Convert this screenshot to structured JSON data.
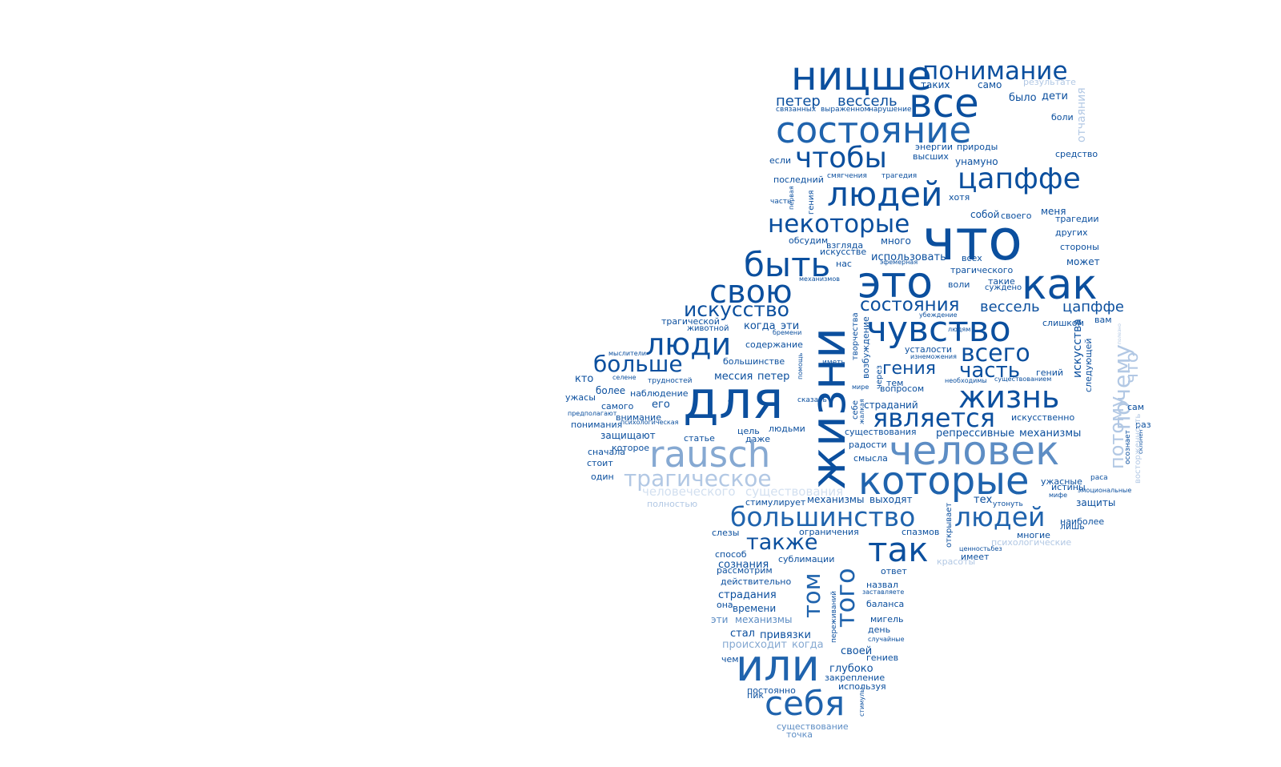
{
  "palette": {
    "c1": "#0b4f9e",
    "c2": "#1f63ad",
    "c3": "#3c78ba",
    "c4": "#5d8dc4",
    "c5": "#86a9d2",
    "c6": "#b2c8e4",
    "c7": "#d3e0f0"
  },
  "words": [
    {
      "text": "ницше",
      "color": "c1"
    },
    {
      "text": "понимание",
      "color": "c1"
    },
    {
      "text": "таких",
      "color": "c1"
    },
    {
      "text": "само",
      "color": "c1"
    },
    {
      "text": "результате",
      "color": "c6"
    },
    {
      "text": "петер",
      "color": "c1"
    },
    {
      "text": "вессель",
      "color": "c1"
    },
    {
      "text": "все",
      "color": "c1"
    },
    {
      "text": "связанных",
      "color": "c1"
    },
    {
      "text": "выраженном",
      "color": "c1"
    },
    {
      "text": "нарушение",
      "color": "c1"
    },
    {
      "text": "было",
      "color": "c1"
    },
    {
      "text": "дети",
      "color": "c1"
    },
    {
      "text": "отчаяния",
      "color": "c6"
    },
    {
      "text": "боли",
      "color": "c1"
    },
    {
      "text": "состояние",
      "color": "c2"
    },
    {
      "text": "энергии",
      "color": "c1"
    },
    {
      "text": "природы",
      "color": "c1"
    },
    {
      "text": "высших",
      "color": "c1"
    },
    {
      "text": "средство",
      "color": "c1"
    },
    {
      "text": "чтобы",
      "color": "c1"
    },
    {
      "text": "если",
      "color": "c1"
    },
    {
      "text": "унамуно",
      "color": "c1"
    },
    {
      "text": "последний",
      "color": "c1"
    },
    {
      "text": "смягчения",
      "color": "c1"
    },
    {
      "text": "трагедия",
      "color": "c1"
    },
    {
      "text": "цапффе",
      "color": "c1"
    },
    {
      "text": "людей",
      "color": "c1"
    },
    {
      "text": "часть",
      "color": "c1"
    },
    {
      "text": "первая",
      "color": "c1"
    },
    {
      "text": "гения",
      "color": "c1"
    },
    {
      "text": "хотя",
      "color": "c1"
    },
    {
      "text": "собой",
      "color": "c1"
    },
    {
      "text": "своего",
      "color": "c1"
    },
    {
      "text": "меня",
      "color": "c1"
    },
    {
      "text": "трагедии",
      "color": "c1"
    },
    {
      "text": "некоторые",
      "color": "c1"
    },
    {
      "text": "что",
      "color": "c1"
    },
    {
      "text": "других",
      "color": "c1"
    },
    {
      "text": "обсудим",
      "color": "c1"
    },
    {
      "text": "много",
      "color": "c1"
    },
    {
      "text": "взгляда",
      "color": "c1"
    },
    {
      "text": "искусстве",
      "color": "c1"
    },
    {
      "text": "стороны",
      "color": "c1"
    },
    {
      "text": "быть",
      "color": "c1"
    },
    {
      "text": "использовать",
      "color": "c1"
    },
    {
      "text": "всех",
      "color": "c1"
    },
    {
      "text": "может",
      "color": "c1"
    },
    {
      "text": "нас",
      "color": "c1"
    },
    {
      "text": "эфемерная",
      "color": "c1"
    },
    {
      "text": "трагического",
      "color": "c1"
    },
    {
      "text": "свою",
      "color": "c1"
    },
    {
      "text": "механизмов",
      "color": "c1"
    },
    {
      "text": "это",
      "color": "c1"
    },
    {
      "text": "как",
      "color": "c1"
    },
    {
      "text": "воли",
      "color": "c1"
    },
    {
      "text": "такие",
      "color": "c1"
    },
    {
      "text": "суждено",
      "color": "c1"
    },
    {
      "text": "жизни",
      "color": "c1"
    },
    {
      "text": "искусство",
      "color": "c1"
    },
    {
      "text": "состояния",
      "color": "c1"
    },
    {
      "text": "вессель",
      "color": "c1"
    },
    {
      "text": "цапффе",
      "color": "c1"
    },
    {
      "text": "убеждение",
      "color": "c1"
    },
    {
      "text": "вам",
      "color": "c1"
    },
    {
      "text": "трагической",
      "color": "c1"
    },
    {
      "text": "когда",
      "color": "c1"
    },
    {
      "text": "эти",
      "color": "c1"
    },
    {
      "text": "животной",
      "color": "c1"
    },
    {
      "text": "бремени",
      "color": "c1"
    },
    {
      "text": "творчества",
      "color": "c1"
    },
    {
      "text": "чувство",
      "color": "c1"
    },
    {
      "text": "слишком",
      "color": "c1"
    },
    {
      "text": "полезно",
      "color": "c6"
    },
    {
      "text": "люди",
      "color": "c1"
    },
    {
      "text": "людям",
      "color": "c1"
    },
    {
      "text": "содержание",
      "color": "c1"
    },
    {
      "text": "возбуждение",
      "color": "c1"
    },
    {
      "text": "усталости",
      "color": "c1"
    },
    {
      "text": "искусства",
      "color": "c1"
    },
    {
      "text": "мыслители",
      "color": "c1"
    },
    {
      "text": "изнеможения",
      "color": "c1"
    },
    {
      "text": "всего",
      "color": "c1"
    },
    {
      "text": "почему",
      "color": "c6"
    },
    {
      "text": "что",
      "color": "c6"
    },
    {
      "text": "следующей",
      "color": "c1"
    },
    {
      "text": "больше",
      "color": "c1"
    },
    {
      "text": "большинстве",
      "color": "c1"
    },
    {
      "text": "помощь",
      "color": "c1"
    },
    {
      "text": "иметь",
      "color": "c1"
    },
    {
      "text": "через",
      "color": "c1"
    },
    {
      "text": "гения",
      "color": "c1"
    },
    {
      "text": "часть",
      "color": "c1"
    },
    {
      "text": "гений",
      "color": "c1"
    },
    {
      "text": "кто",
      "color": "c1"
    },
    {
      "text": "селене",
      "color": "c1"
    },
    {
      "text": "мессия",
      "color": "c1"
    },
    {
      "text": "петер",
      "color": "c1"
    },
    {
      "text": "трудностей",
      "color": "c1"
    },
    {
      "text": "тем",
      "color": "c1"
    },
    {
      "text": "необходимы",
      "color": "c1"
    },
    {
      "text": "существованием",
      "color": "c1"
    },
    {
      "text": "более",
      "color": "c1"
    },
    {
      "text": "для",
      "color": "c1"
    },
    {
      "text": "мире",
      "color": "c1"
    },
    {
      "text": "вопросом",
      "color": "c1"
    },
    {
      "text": "жизнь",
      "color": "c1"
    },
    {
      "text": "ужасы",
      "color": "c1"
    },
    {
      "text": "наблюдение",
      "color": "c1"
    },
    {
      "text": "себе",
      "color": "c1"
    },
    {
      "text": "жалкая",
      "color": "c1"
    },
    {
      "text": "сам",
      "color": "c1"
    },
    {
      "text": "самого",
      "color": "c1"
    },
    {
      "text": "его",
      "color": "c1"
    },
    {
      "text": "вас",
      "color": "c1"
    },
    {
      "text": "сказать",
      "color": "c1"
    },
    {
      "text": "страданий",
      "color": "c1"
    },
    {
      "text": "предполагают",
      "color": "c1"
    },
    {
      "text": "внимание",
      "color": "c1"
    },
    {
      "text": "является",
      "color": "c1"
    },
    {
      "text": "искусственно",
      "color": "c1"
    },
    {
      "text": "понимания",
      "color": "c1"
    },
    {
      "text": "психологическая",
      "color": "c1"
    },
    {
      "text": "цель",
      "color": "c1"
    },
    {
      "text": "людьми",
      "color": "c1"
    },
    {
      "text": "раз",
      "color": "c1"
    },
    {
      "text": "защищают",
      "color": "c1"
    },
    {
      "text": "статье",
      "color": "c1"
    },
    {
      "text": "даже",
      "color": "c1"
    },
    {
      "text": "существования",
      "color": "c1"
    },
    {
      "text": "репрессивные",
      "color": "c1"
    },
    {
      "text": "механизмы",
      "color": "c1"
    },
    {
      "text": "осознает",
      "color": "c1"
    },
    {
      "text": "склонен",
      "color": "c1"
    },
    {
      "text": "которое",
      "color": "c1"
    },
    {
      "text": "радости",
      "color": "c1"
    },
    {
      "text": "сначала",
      "color": "c1"
    },
    {
      "text": "rausch",
      "color": "c5"
    },
    {
      "text": "человек",
      "color": "c4"
    },
    {
      "text": "стоит",
      "color": "c1"
    },
    {
      "text": "смысла",
      "color": "c1"
    },
    {
      "text": "потому",
      "color": "c6"
    },
    {
      "text": "восторженность",
      "color": "c6"
    },
    {
      "text": "один",
      "color": "c1"
    },
    {
      "text": "трагическое",
      "color": "c6"
    },
    {
      "text": "которые",
      "color": "c2"
    },
    {
      "text": "раса",
      "color": "c1"
    },
    {
      "text": "ужасные",
      "color": "c1"
    },
    {
      "text": "истины",
      "color": "c1"
    },
    {
      "text": "эмоциональные",
      "color": "c1"
    },
    {
      "text": "человеческого",
      "color": "c7"
    },
    {
      "text": "существования",
      "color": "c7"
    },
    {
      "text": "мифе",
      "color": "c1"
    },
    {
      "text": "механизмы",
      "color": "c1"
    },
    {
      "text": "выходят",
      "color": "c1"
    },
    {
      "text": "тех",
      "color": "c1"
    },
    {
      "text": "полностью",
      "color": "c6"
    },
    {
      "text": "стимулирует",
      "color": "c1"
    },
    {
      "text": "утонуть",
      "color": "c1"
    },
    {
      "text": "защиты",
      "color": "c1"
    },
    {
      "text": "большинство",
      "color": "c2"
    },
    {
      "text": "людей",
      "color": "c2"
    },
    {
      "text": "наиболее",
      "color": "c1"
    },
    {
      "text": "лишь",
      "color": "c1"
    },
    {
      "text": "открывает",
      "color": "c1"
    },
    {
      "text": "слезы",
      "color": "c1"
    },
    {
      "text": "ограничения",
      "color": "c1"
    },
    {
      "text": "спазмов",
      "color": "c1"
    },
    {
      "text": "многие",
      "color": "c1"
    },
    {
      "text": "также",
      "color": "c1"
    },
    {
      "text": "так",
      "color": "c1"
    },
    {
      "text": "психологические",
      "color": "c6"
    },
    {
      "text": "способ",
      "color": "c1"
    },
    {
      "text": "ценностьбез",
      "color": "c1"
    },
    {
      "text": "сублимации",
      "color": "c1"
    },
    {
      "text": "имеет",
      "color": "c1"
    },
    {
      "text": "сознания",
      "color": "c1"
    },
    {
      "text": "красоты",
      "color": "c6"
    },
    {
      "text": "рассмотрим",
      "color": "c1"
    },
    {
      "text": "ответ",
      "color": "c1"
    },
    {
      "text": "того",
      "color": "c2"
    },
    {
      "text": "действительно",
      "color": "c1"
    },
    {
      "text": "том",
      "color": "c2"
    },
    {
      "text": "назвал",
      "color": "c1"
    },
    {
      "text": "заставляете",
      "color": "c1"
    },
    {
      "text": "страдания",
      "color": "c1"
    },
    {
      "text": "она",
      "color": "c1"
    },
    {
      "text": "баланса",
      "color": "c1"
    },
    {
      "text": "времени",
      "color": "c1"
    },
    {
      "text": "эти",
      "color": "c4"
    },
    {
      "text": "механизмы",
      "color": "c4"
    },
    {
      "text": "мигель",
      "color": "c1"
    },
    {
      "text": "переживаний",
      "color": "c1"
    },
    {
      "text": "день",
      "color": "c1"
    },
    {
      "text": "стал",
      "color": "c1"
    },
    {
      "text": "привязки",
      "color": "c1"
    },
    {
      "text": "случайные",
      "color": "c1"
    },
    {
      "text": "происходит",
      "color": "c5"
    },
    {
      "text": "когда",
      "color": "c5"
    },
    {
      "text": "своей",
      "color": "c1"
    },
    {
      "text": "гениев",
      "color": "c1"
    },
    {
      "text": "чем",
      "color": "c1"
    },
    {
      "text": "или",
      "color": "c2"
    },
    {
      "text": "глубоко",
      "color": "c1"
    },
    {
      "text": "закрепление",
      "color": "c1"
    },
    {
      "text": "постоянно",
      "color": "c1"
    },
    {
      "text": "используя",
      "color": "c1"
    },
    {
      "text": "пик",
      "color": "c1"
    },
    {
      "text": "себя",
      "color": "c2"
    },
    {
      "text": "стимулы",
      "color": "c1"
    },
    {
      "text": "существование",
      "color": "c4"
    },
    {
      "text": "точка",
      "color": "c4"
    }
  ]
}
